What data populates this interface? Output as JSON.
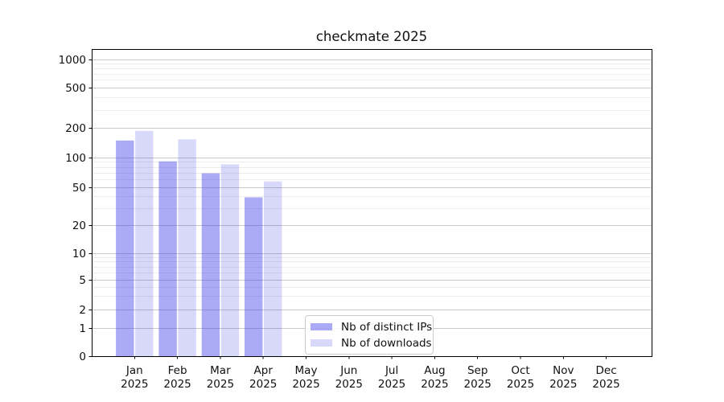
{
  "chart_data": {
    "type": "bar",
    "title": "checkmate 2025",
    "categories": [
      "Jan 2025",
      "Feb 2025",
      "Mar 2025",
      "Apr 2025",
      "May 2025",
      "Jun 2025",
      "Jul 2025",
      "Aug 2025",
      "Sep 2025",
      "Oct 2025",
      "Nov 2025",
      "Dec 2025"
    ],
    "series": [
      {
        "name": "Nb of distinct IPs",
        "color": "rgba(62,62,235,0.44)",
        "values": [
          148,
          91,
          69,
          39,
          0,
          0,
          0,
          0,
          0,
          0,
          0,
          0
        ]
      },
      {
        "name": "Nb of downloads",
        "color": "rgba(62,62,235,0.20)",
        "values": [
          185,
          152,
          85,
          57,
          0,
          0,
          0,
          0,
          0,
          0,
          0,
          0
        ]
      }
    ],
    "y_ticks": [
      0,
      1,
      2,
      5,
      10,
      20,
      50,
      100,
      200,
      500,
      1000
    ],
    "yscale": "log-with-zero",
    "ylim": [
      0,
      1300
    ],
    "xlabel": "",
    "ylabel": "",
    "grid": "horizontal, major and minor",
    "legend_position": "inside bottom-center-left",
    "colors": {
      "bar_base": "#3e3eeb",
      "major_grid": "#c9c9c9",
      "minor_grid": "#ececec",
      "frame": "#000000"
    }
  }
}
